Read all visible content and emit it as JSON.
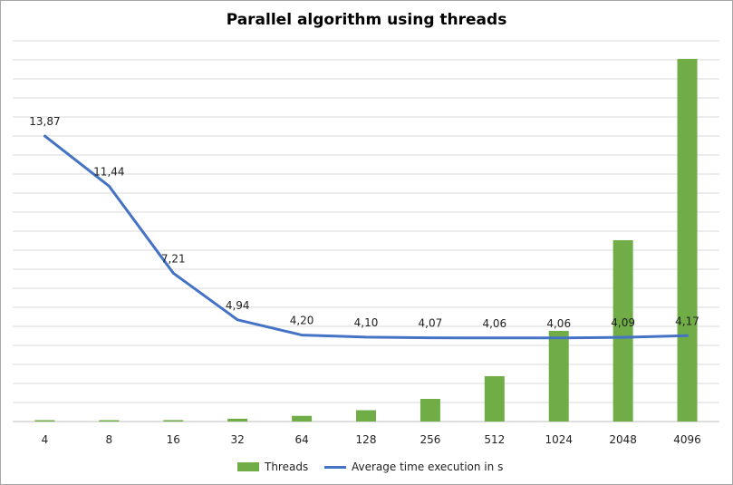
{
  "chart_data": {
    "type": "bar+line",
    "title": "Parallel algorithm  using threads",
    "categories": [
      "4",
      "8",
      "16",
      "32",
      "64",
      "128",
      "256",
      "512",
      "1024",
      "2048",
      "4096"
    ],
    "series": [
      {
        "name": "Threads",
        "type": "bar",
        "color": "#70ad47",
        "values": [
          4,
          8,
          16,
          32,
          64,
          128,
          256,
          512,
          1024,
          2048,
          4096
        ]
      },
      {
        "name": "Average time execution in s",
        "type": "line",
        "color": "#4472c4",
        "values": [
          13.87,
          11.44,
          7.21,
          4.94,
          4.2,
          4.1,
          4.07,
          4.06,
          4.06,
          4.09,
          4.17
        ],
        "labels": [
          "13,87",
          "11,44",
          "7,21",
          "4,94",
          "4,20",
          "4,10",
          "4,07",
          "4,06",
          "4,06",
          "4,09",
          "4,17"
        ]
      }
    ],
    "bar_axis_max": 4300,
    "line_axis_max": 18.5,
    "grid": true,
    "gridlines": 20,
    "legend_position": "bottom"
  }
}
